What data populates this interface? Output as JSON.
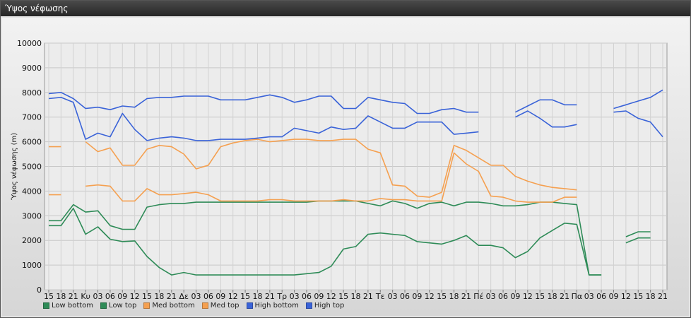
{
  "window": {
    "title": "Ύψος νέφωσης"
  },
  "chart_data": {
    "type": "line",
    "title": "",
    "xlabel": "",
    "ylabel": "Ύψος νέφωσης (m)",
    "ylim": [
      0,
      10000
    ],
    "yticks": [
      0,
      1000,
      2000,
      3000,
      4000,
      5000,
      6000,
      7000,
      8000,
      9000,
      10000
    ],
    "grid": true,
    "legend_position": "bottom-left",
    "categories": [
      "15",
      "18",
      "21",
      "Κυ",
      "03",
      "06",
      "09",
      "12",
      "15",
      "18",
      "21",
      "Δε",
      "03",
      "06",
      "09",
      "12",
      "15",
      "18",
      "21",
      "Τρ",
      "03",
      "06",
      "09",
      "12",
      "15",
      "18",
      "21",
      "Τε",
      "03",
      "06",
      "09",
      "12",
      "15",
      "18",
      "21",
      "Πέ",
      "03",
      "06",
      "09",
      "12",
      "15",
      "18",
      "21",
      "Πα",
      "03",
      "06",
      "09",
      "12",
      "15",
      "18",
      "21"
    ],
    "series": [
      {
        "name": "Low bottom",
        "color": "#2e8b57",
        "values": [
          2600,
          2600,
          3300,
          2250,
          2550,
          2050,
          1950,
          1980,
          1350,
          900,
          600,
          700,
          600,
          600,
          600,
          600,
          600,
          600,
          600,
          600,
          600,
          650,
          700,
          950,
          1650,
          1750,
          2250,
          2300,
          2250,
          2200,
          1950,
          1900,
          1850,
          2000,
          2200,
          1800,
          1800,
          1700,
          1300,
          1550,
          2100,
          2400,
          2700,
          2650,
          600,
          600,
          null,
          1900,
          2100,
          2100,
          null
        ]
      },
      {
        "name": "Low top",
        "color": "#2e8b57",
        "values": [
          2800,
          2800,
          3450,
          3150,
          3200,
          2600,
          2450,
          2450,
          3350,
          3450,
          3500,
          3500,
          3550,
          3550,
          3550,
          3550,
          3550,
          3550,
          3550,
          3550,
          3550,
          3550,
          3600,
          3600,
          3600,
          3600,
          3500,
          3400,
          3600,
          3500,
          3300,
          3500,
          3550,
          3400,
          3550,
          3550,
          3500,
          3400,
          3400,
          3450,
          3550,
          3550,
          3500,
          3450,
          600,
          600,
          null,
          2150,
          2350,
          2350,
          null
        ]
      },
      {
        "name": "Med bottom",
        "color": "#f5a050",
        "values": [
          3850,
          3850,
          null,
          4200,
          4250,
          4200,
          3600,
          3600,
          4100,
          3850,
          3850,
          3900,
          3950,
          3850,
          3600,
          3600,
          3600,
          3600,
          3650,
          3650,
          3600,
          3600,
          3600,
          3600,
          3650,
          3600,
          3600,
          3700,
          3650,
          3650,
          3600,
          3600,
          3600,
          5550,
          5100,
          4800,
          3800,
          3750,
          3600,
          3550,
          3550,
          3550,
          3750,
          3750,
          null,
          null,
          null,
          null,
          null,
          null,
          null
        ]
      },
      {
        "name": "Med top",
        "color": "#f5a050",
        "values": [
          5800,
          5800,
          null,
          6000,
          5600,
          5750,
          5050,
          5050,
          5700,
          5850,
          5800,
          5500,
          4900,
          5050,
          5800,
          5950,
          6050,
          6100,
          6000,
          6050,
          6100,
          6100,
          6050,
          6050,
          6100,
          6100,
          5700,
          5550,
          4250,
          4200,
          3800,
          3750,
          3950,
          5850,
          5650,
          5350,
          5050,
          5050,
          4600,
          4400,
          4250,
          4150,
          4100,
          4050,
          null,
          null,
          null,
          null,
          null,
          null,
          null
        ]
      },
      {
        "name": "High bottom",
        "color": "#3a63d8",
        "values": [
          7750,
          7800,
          7600,
          6100,
          6350,
          6200,
          7150,
          6500,
          6050,
          6150,
          6200,
          6150,
          6050,
          6050,
          6100,
          6100,
          6100,
          6150,
          6200,
          6200,
          6550,
          6450,
          6350,
          6600,
          6500,
          6550,
          7050,
          6800,
          6550,
          6550,
          6800,
          6800,
          6800,
          6300,
          6350,
          6400,
          null,
          null,
          7000,
          7250,
          6950,
          6600,
          6600,
          6700,
          null,
          null,
          7200,
          7250,
          6950,
          6800,
          6200
        ]
      },
      {
        "name": "High top",
        "color": "#3a63d8",
        "values": [
          7950,
          8000,
          7750,
          7350,
          7400,
          7300,
          7450,
          7400,
          7750,
          7800,
          7800,
          7850,
          7850,
          7850,
          7700,
          7700,
          7700,
          7800,
          7900,
          7800,
          7600,
          7700,
          7850,
          7850,
          7350,
          7350,
          7800,
          7700,
          7600,
          7550,
          7150,
          7150,
          7300,
          7350,
          7200,
          7200,
          null,
          null,
          7200,
          7450,
          7700,
          7700,
          7500,
          7500,
          null,
          null,
          7350,
          7500,
          7650,
          7800,
          8100
        ]
      }
    ]
  }
}
